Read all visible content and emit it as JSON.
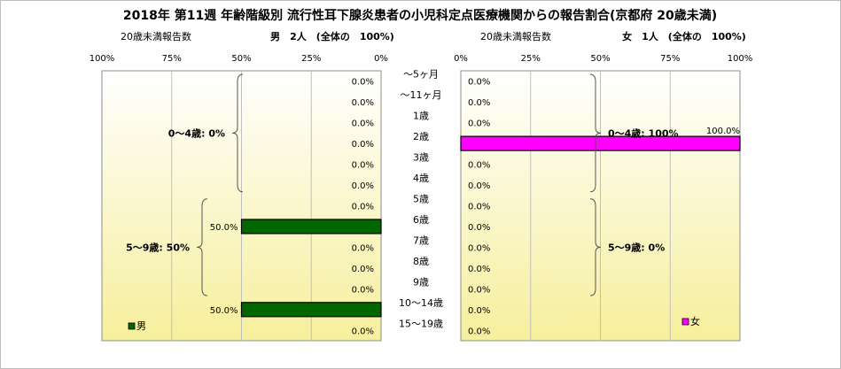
{
  "title": "2018年 第11週 年齢階級別 流行性耳下腺炎患者の小児科定点医療機関からの報告割合(京都府 20歳未満)",
  "chart_data": [
    {
      "type": "bar",
      "orientation": "horizontal",
      "direction": "right-to-left",
      "caption_left": "20歳未満報告数",
      "caption_main": "男　2人　(全体の　100%)",
      "xlim": [
        0,
        100
      ],
      "xticks": [
        "100%",
        "75%",
        "50%",
        "25%",
        "0%"
      ],
      "legend": "男",
      "legend_position": "bottom-left",
      "bar_color": "#006600",
      "values": [
        0,
        0,
        0,
        0,
        0,
        0,
        0,
        50,
        0,
        0,
        0,
        50,
        0
      ],
      "value_labels": [
        "0.0%",
        "0.0%",
        "0.0%",
        "0.0%",
        "0.0%",
        "0.0%",
        "0.0%",
        "50.0%",
        "0.0%",
        "0.0%",
        "0.0%",
        "50.0%",
        "0.0%"
      ],
      "groups": [
        {
          "label": "0～4歳: 0%",
          "from": 0,
          "to": 5
        },
        {
          "label": "5～9歳: 50%",
          "from": 6,
          "to": 10
        }
      ]
    },
    {
      "type": "bar",
      "orientation": "horizontal",
      "direction": "left-to-right",
      "caption_left": "20歳未満報告数",
      "caption_main": "女　1人　(全体の　100%)",
      "xlim": [
        0,
        100
      ],
      "xticks": [
        "0%",
        "25%",
        "50%",
        "75%",
        "100%"
      ],
      "legend": "女",
      "legend_position": "bottom-right",
      "bar_color": "#ff00ff",
      "values": [
        0,
        0,
        0,
        100,
        0,
        0,
        0,
        0,
        0,
        0,
        0,
        0,
        0
      ],
      "value_labels": [
        "0.0%",
        "0.0%",
        "0.0%",
        "100.0%",
        "0.0%",
        "0.0%",
        "0.0%",
        "0.0%",
        "0.0%",
        "0.0%",
        "0.0%",
        "0.0%",
        "0.0%"
      ],
      "groups": [
        {
          "label": "0～4歳: 100%",
          "from": 0,
          "to": 5
        },
        {
          "label": "5～9歳: 0%",
          "from": 6,
          "to": 10
        }
      ]
    }
  ],
  "categories": [
    "～5ヶ月",
    "～11ヶ月",
    "1歳",
    "2歳",
    "3歳",
    "4歳",
    "5歳",
    "6歳",
    "7歳",
    "8歳",
    "9歳",
    "10～14歳",
    "15～19歳"
  ]
}
